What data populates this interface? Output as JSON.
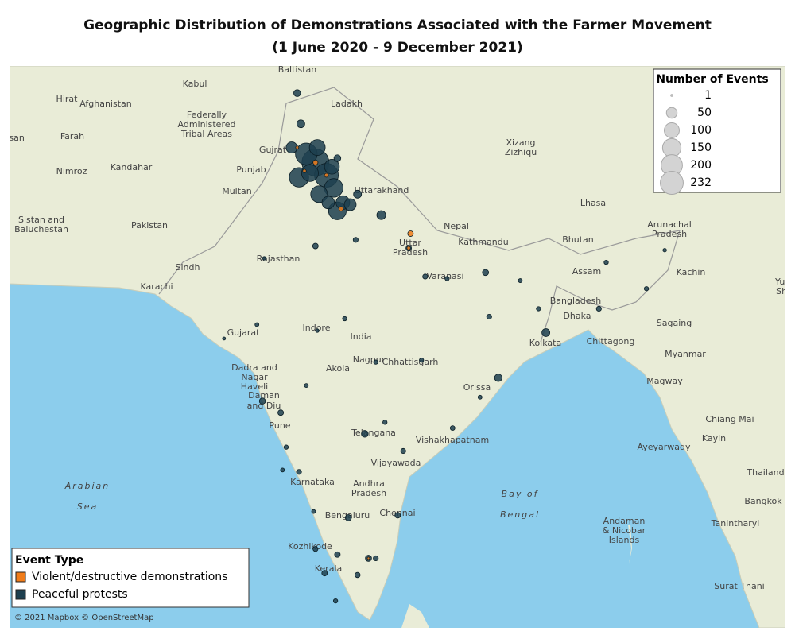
{
  "map": {
    "title": "Geographic Distribution of Demonstrations Associated with the Farmer Movement",
    "subtitle": "(1 June 2020 - 9 December 2021)",
    "attribution": "© 2021 Mapbox © OpenStreetMap",
    "size_legend": {
      "title": "Number of Events",
      "sizes": [
        1,
        50,
        100,
        150,
        200,
        232
      ]
    },
    "type_legend": {
      "title": "Event Type"
    },
    "series": [
      {
        "name": "Violent/destructive demonstrations",
        "color": "#f07c1a",
        "points": [
          [
            75.8,
            30.9,
            8
          ],
          [
            76.4,
            30.3,
            5
          ],
          [
            77.2,
            28.7,
            6
          ],
          [
            80.9,
            26.8,
            4
          ],
          [
            81.0,
            27.5,
            10
          ],
          [
            78.7,
            10.8,
            2
          ],
          [
            74.8,
            31.6,
            3
          ],
          [
            75.2,
            30.5,
            4
          ]
        ]
      },
      {
        "name": "Peaceful protests",
        "color": "#1d3f4f",
        "points": [
          [
            75.8,
            30.9,
            232
          ],
          [
            76.4,
            30.3,
            180
          ],
          [
            75.3,
            31.3,
            150
          ],
          [
            74.9,
            30.2,
            120
          ],
          [
            76.8,
            29.7,
            110
          ],
          [
            76.0,
            29.4,
            90
          ],
          [
            77.0,
            28.6,
            100
          ],
          [
            75.9,
            31.6,
            80
          ],
          [
            74.5,
            31.6,
            40
          ],
          [
            76.7,
            30.7,
            70
          ],
          [
            77.3,
            29.0,
            60
          ],
          [
            77.7,
            28.9,
            45
          ],
          [
            78.1,
            29.4,
            20
          ],
          [
            76.5,
            29.0,
            50
          ],
          [
            75.5,
            30.4,
            90
          ],
          [
            77.0,
            31.1,
            15
          ],
          [
            74.8,
            34.1,
            15
          ],
          [
            75.0,
            32.7,
            20
          ],
          [
            80.9,
            26.8,
            10
          ],
          [
            81.8,
            25.4,
            8
          ],
          [
            83.0,
            25.3,
            6
          ],
          [
            79.4,
            28.4,
            25
          ],
          [
            78.0,
            27.2,
            8
          ],
          [
            75.8,
            26.9,
            10
          ],
          [
            73.0,
            26.3,
            4
          ],
          [
            77.4,
            23.3,
            6
          ],
          [
            75.9,
            22.7,
            4
          ],
          [
            85.1,
            25.6,
            12
          ],
          [
            87.0,
            25.2,
            5
          ],
          [
            85.3,
            23.4,
            8
          ],
          [
            88.4,
            22.6,
            20
          ],
          [
            88.0,
            23.8,
            6
          ],
          [
            85.8,
            20.3,
            18
          ],
          [
            84.8,
            19.3,
            5
          ],
          [
            73.9,
            18.5,
            10
          ],
          [
            72.9,
            19.1,
            12
          ],
          [
            79.1,
            21.1,
            6
          ],
          [
            75.3,
            19.9,
            5
          ],
          [
            74.2,
            16.7,
            6
          ],
          [
            78.5,
            17.4,
            15
          ],
          [
            79.6,
            18.0,
            6
          ],
          [
            80.6,
            16.5,
            8
          ],
          [
            83.3,
            17.7,
            7
          ],
          [
            77.6,
            12.97,
            12
          ],
          [
            74.9,
            15.4,
            8
          ],
          [
            75.7,
            13.3,
            5
          ],
          [
            80.3,
            13.1,
            10
          ],
          [
            78.7,
            10.8,
            12
          ],
          [
            78.1,
            9.9,
            9
          ],
          [
            77.0,
            11.0,
            10
          ],
          [
            79.1,
            10.8,
            8
          ],
          [
            76.3,
            10.0,
            10
          ],
          [
            75.8,
            11.3,
            8
          ],
          [
            76.9,
            8.5,
            6
          ],
          [
            91.7,
            26.1,
            6
          ],
          [
            94.9,
            26.7,
            4
          ],
          [
            91.3,
            23.8,
            8
          ],
          [
            72.6,
            23.0,
            5
          ],
          [
            70.8,
            22.3,
            3
          ],
          [
            81.6,
            21.2,
            6
          ],
          [
            93.9,
            24.8,
            6
          ],
          [
            74.0,
            15.5,
            5
          ]
        ]
      }
    ],
    "places": [
      "Baltistan",
      "Kabul",
      "Hirat",
      "Afghanistan",
      "Federally",
      "Administered",
      "Tribal Areas",
      "Ladakh",
      "Gujrat",
      "Farah",
      "Kandahar",
      "Nimroz",
      "Punjab",
      "Multan",
      "Xizang",
      "Zizhiqu",
      "Pakistan",
      "Sistan and",
      "Baluchestan",
      "Nepal",
      "Lhasa",
      "Bhutan",
      "Arunachal",
      "Pradesh",
      "Kathmandu",
      "Uttar",
      "Pradesh",
      "Rajasthan",
      "Sindh",
      "Karachi",
      "Varanasi",
      "Assam",
      "Kachin",
      "Bangladesh",
      "Dhaka",
      "Gujarat",
      "Indore",
      "India",
      "Sagaing",
      "Chittagong",
      "Myanmar",
      "Kolkata",
      "Nagpur",
      "Chhattisgarh",
      "Akola",
      "Magway",
      "Dadra and",
      "Nagar",
      "Haveli",
      "Daman",
      "and Diu",
      "Orissa",
      "Pune",
      "Telangana",
      "Chiang Mai",
      "Vishakhapatnam",
      "Ayeyarwady",
      "Kayin",
      "Vijayawada",
      "Arabian",
      "Sea",
      "Bay of",
      "Bengal",
      "Karnataka",
      "Andhra",
      "Pradesh",
      "Thailand",
      "Chennai",
      "Bengaluru",
      "Bangkok",
      "Andaman",
      "& Nicobar",
      "Islands",
      "Tanintharyi",
      "Kozhikode",
      "Kerala",
      "Surat Thani",
      "Uttarakhand",
      "Yunnan",
      "Shan",
      "Khorasan"
    ]
  }
}
